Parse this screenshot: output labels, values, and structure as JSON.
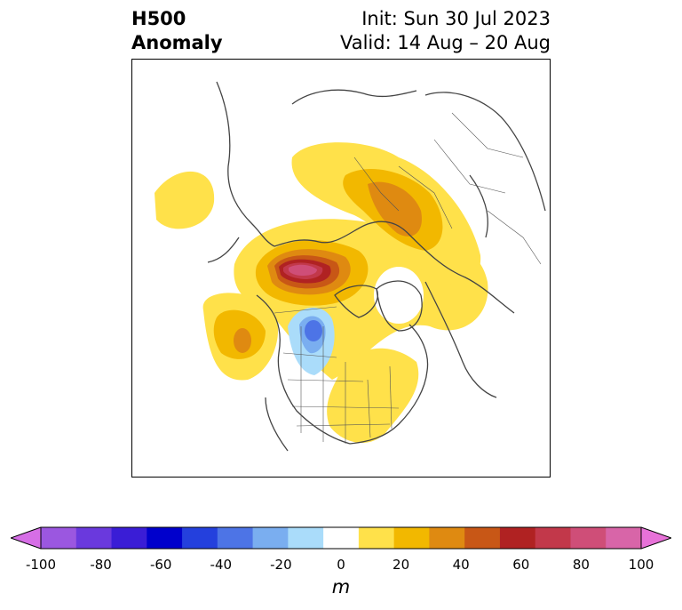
{
  "title": {
    "left_line1": "H500",
    "left_line2": "Anomaly",
    "right_line1": "Init: Sun 30 Jul 2023",
    "right_line2": "Valid: 14 Aug – 20 Aug"
  },
  "map": {
    "projection": "polar stereographic (North America / Arctic)",
    "features": [
      {
        "name": "strong-positive-anomaly-center",
        "region": "northwestern Canada / Yukon-NWT",
        "peak_m": 80
      },
      {
        "name": "positive-anomaly-greenland-russia",
        "region": "Arctic Russia and northern Scandinavia",
        "level_m": 40
      },
      {
        "name": "positive-anomaly-pacific",
        "region": "northeast Pacific",
        "level_m": 40
      },
      {
        "name": "positive-anomaly-east-us",
        "region": "eastern US and Canada",
        "level_m": 20
      },
      {
        "name": "negative-anomaly-plains",
        "region": "northern Great Plains",
        "level_m": -30
      }
    ]
  },
  "colorbar": {
    "ticks": [
      "-100",
      "-80",
      "-60",
      "-40",
      "-20",
      "0",
      "20",
      "40",
      "60",
      "80",
      "100"
    ],
    "colors": [
      "#d66ee6",
      "#9b57e0",
      "#6a39dd",
      "#3a1dd6",
      "#0000cc",
      "#2440dd",
      "#4d74e6",
      "#7aaef0",
      "#aadcfa",
      "#ffffff",
      "#ffe14a",
      "#f2b800",
      "#df8a11",
      "#c85716",
      "#b02222",
      "#c2384a",
      "#cf4e78",
      "#d865a8",
      "#e772d8"
    ],
    "units": "m"
  }
}
